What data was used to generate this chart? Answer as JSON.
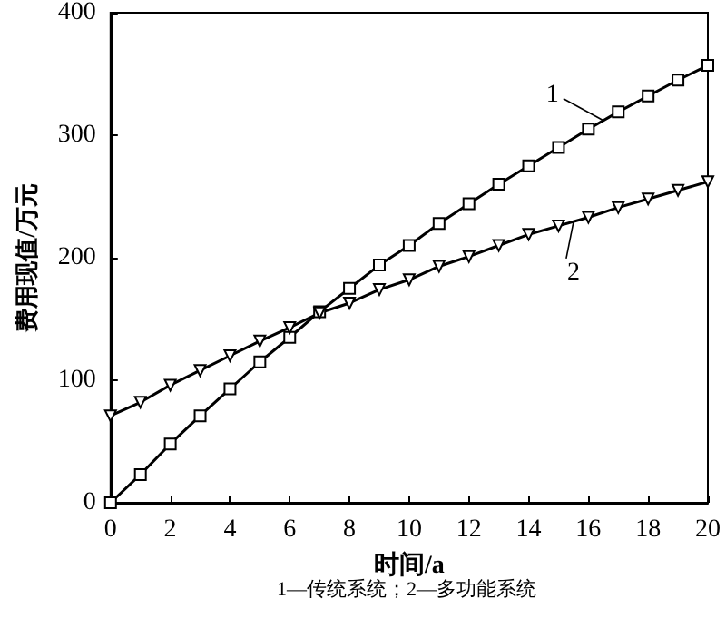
{
  "chart_data": {
    "type": "line",
    "xlabel": "时间/a",
    "ylabel": "费用现值/万元",
    "x": [
      0,
      1,
      2,
      3,
      4,
      5,
      6,
      7,
      8,
      9,
      10,
      11,
      12,
      13,
      14,
      15,
      16,
      17,
      18,
      19,
      20
    ],
    "series": [
      {
        "color": "#000000",
        "marker": "square",
        "values": [
          0,
          23,
          48,
          71,
          93,
          115,
          135,
          156,
          175,
          194,
          210,
          228,
          244,
          260,
          275,
          290,
          305,
          319,
          332,
          345,
          357
        ]
      },
      {
        "color": "#000000",
        "marker": "triangle",
        "values": [
          71,
          82,
          96,
          108,
          120,
          132,
          143,
          155,
          163,
          174,
          182,
          193,
          201,
          210,
          219,
          226,
          233,
          241,
          248,
          255,
          262
        ]
      }
    ],
    "xlim": [
      0,
      20
    ],
    "xticks": [
      0,
      2,
      4,
      6,
      8,
      10,
      12,
      14,
      16,
      18,
      20
    ],
    "ylim": [
      0,
      400
    ],
    "yticks": [
      0,
      100,
      200,
      300,
      400
    ],
    "line_style": "solid",
    "annotations": [
      {
        "text": "1",
        "x": 16.5,
        "y": 312
      },
      {
        "text": "2",
        "x": 15.5,
        "y": 229
      },
      "1—传统系统；2—多功能系统"
    ]
  }
}
